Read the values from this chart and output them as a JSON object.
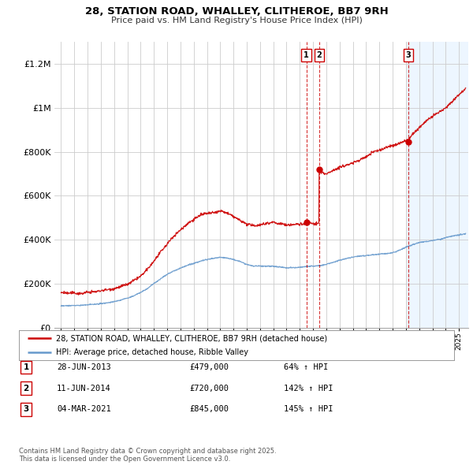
{
  "title": "28, STATION ROAD, WHALLEY, CLITHEROE, BB7 9RH",
  "subtitle": "Price paid vs. HM Land Registry's House Price Index (HPI)",
  "legend_line1": "28, STATION ROAD, WHALLEY, CLITHEROE, BB7 9RH (detached house)",
  "legend_line2": "HPI: Average price, detached house, Ribble Valley",
  "footer": "Contains HM Land Registry data © Crown copyright and database right 2025.\nThis data is licensed under the Open Government Licence v3.0.",
  "transactions": [
    {
      "label": "1",
      "date": "28-JUN-2013",
      "price": "£479,000",
      "hpi": "64% ↑ HPI",
      "x": 2013.49,
      "y_red": 479000
    },
    {
      "label": "2",
      "date": "11-JUN-2014",
      "price": "£720,000",
      "hpi": "142% ↑ HPI",
      "x": 2014.45,
      "y_red": 720000
    },
    {
      "label": "3",
      "date": "04-MAR-2021",
      "price": "£845,000",
      "hpi": "145% ↑ HPI",
      "x": 2021.17,
      "y_red": 845000
    }
  ],
  "red_color": "#cc0000",
  "blue_color": "#6699cc",
  "blue_fill_color": "#ddeeff",
  "grid_color": "#cccccc",
  "background_color": "#ffffff",
  "ylim": [
    0,
    1300000
  ],
  "xlim": [
    1994.5,
    2025.7
  ],
  "red_keypoints": [
    [
      1995.0,
      160000
    ],
    [
      1995.5,
      158000
    ],
    [
      1996.0,
      162000
    ],
    [
      1996.5,
      160000
    ],
    [
      1997.0,
      165000
    ],
    [
      1997.5,
      168000
    ],
    [
      1998.0,
      173000
    ],
    [
      1998.5,
      178000
    ],
    [
      1999.0,
      183000
    ],
    [
      1999.5,
      190000
    ],
    [
      2000.0,
      200000
    ],
    [
      2000.5,
      215000
    ],
    [
      2001.0,
      235000
    ],
    [
      2001.5,
      265000
    ],
    [
      2002.0,
      305000
    ],
    [
      2002.5,
      345000
    ],
    [
      2003.0,
      380000
    ],
    [
      2003.5,
      415000
    ],
    [
      2004.0,
      445000
    ],
    [
      2004.5,
      470000
    ],
    [
      2005.0,
      490000
    ],
    [
      2005.5,
      510000
    ],
    [
      2006.0,
      515000
    ],
    [
      2006.5,
      520000
    ],
    [
      2007.0,
      530000
    ],
    [
      2007.5,
      520000
    ],
    [
      2008.0,
      505000
    ],
    [
      2008.5,
      490000
    ],
    [
      2009.0,
      475000
    ],
    [
      2009.5,
      468000
    ],
    [
      2010.0,
      472000
    ],
    [
      2010.5,
      478000
    ],
    [
      2011.0,
      480000
    ],
    [
      2011.5,
      475000
    ],
    [
      2012.0,
      470000
    ],
    [
      2012.5,
      472000
    ],
    [
      2013.0,
      474000
    ],
    [
      2013.49,
      479000
    ],
    [
      2013.51,
      479000
    ],
    [
      2013.6,
      482000
    ],
    [
      2013.8,
      480000
    ],
    [
      2014.0,
      478000
    ],
    [
      2014.44,
      479000
    ],
    [
      2014.45,
      720000
    ],
    [
      2014.5,
      718000
    ],
    [
      2014.7,
      710000
    ],
    [
      2015.0,
      700000
    ],
    [
      2015.5,
      720000
    ],
    [
      2016.0,
      730000
    ],
    [
      2016.5,
      740000
    ],
    [
      2017.0,
      750000
    ],
    [
      2017.5,
      760000
    ],
    [
      2018.0,
      770000
    ],
    [
      2018.5,
      790000
    ],
    [
      2019.0,
      800000
    ],
    [
      2019.5,
      810000
    ],
    [
      2020.0,
      820000
    ],
    [
      2020.5,
      830000
    ],
    [
      2021.0,
      840000
    ],
    [
      2021.17,
      845000
    ],
    [
      2021.5,
      870000
    ],
    [
      2022.0,
      900000
    ],
    [
      2022.5,
      930000
    ],
    [
      2023.0,
      950000
    ],
    [
      2023.5,
      970000
    ],
    [
      2024.0,
      990000
    ],
    [
      2024.5,
      1020000
    ],
    [
      2025.0,
      1050000
    ],
    [
      2025.5,
      1080000
    ]
  ],
  "blue_keypoints": [
    [
      1995.0,
      100000
    ],
    [
      1995.5,
      100000
    ],
    [
      1996.0,
      101000
    ],
    [
      1996.5,
      101500
    ],
    [
      1997.0,
      103000
    ],
    [
      1997.5,
      105000
    ],
    [
      1998.0,
      108000
    ],
    [
      1998.5,
      112000
    ],
    [
      1999.0,
      117000
    ],
    [
      1999.5,
      125000
    ],
    [
      2000.0,
      133000
    ],
    [
      2000.5,
      145000
    ],
    [
      2001.0,
      158000
    ],
    [
      2001.5,
      175000
    ],
    [
      2002.0,
      200000
    ],
    [
      2002.5,
      220000
    ],
    [
      2003.0,
      240000
    ],
    [
      2003.5,
      255000
    ],
    [
      2004.0,
      268000
    ],
    [
      2004.5,
      280000
    ],
    [
      2005.0,
      290000
    ],
    [
      2005.5,
      300000
    ],
    [
      2006.0,
      308000
    ],
    [
      2006.5,
      312000
    ],
    [
      2007.0,
      318000
    ],
    [
      2007.5,
      315000
    ],
    [
      2008.0,
      308000
    ],
    [
      2008.5,
      298000
    ],
    [
      2009.0,
      285000
    ],
    [
      2009.5,
      278000
    ],
    [
      2010.0,
      278000
    ],
    [
      2010.5,
      278000
    ],
    [
      2011.0,
      278000
    ],
    [
      2011.5,
      275000
    ],
    [
      2012.0,
      272000
    ],
    [
      2012.5,
      272000
    ],
    [
      2013.0,
      274000
    ],
    [
      2013.5,
      277000
    ],
    [
      2014.0,
      280000
    ],
    [
      2014.5,
      283000
    ],
    [
      2015.0,
      290000
    ],
    [
      2015.5,
      298000
    ],
    [
      2016.0,
      308000
    ],
    [
      2016.5,
      315000
    ],
    [
      2017.0,
      320000
    ],
    [
      2017.5,
      325000
    ],
    [
      2018.0,
      328000
    ],
    [
      2018.5,
      330000
    ],
    [
      2019.0,
      333000
    ],
    [
      2019.5,
      336000
    ],
    [
      2020.0,
      340000
    ],
    [
      2020.5,
      350000
    ],
    [
      2021.0,
      365000
    ],
    [
      2021.5,
      375000
    ],
    [
      2022.0,
      385000
    ],
    [
      2022.5,
      390000
    ],
    [
      2023.0,
      395000
    ],
    [
      2023.5,
      400000
    ],
    [
      2024.0,
      408000
    ],
    [
      2024.5,
      415000
    ],
    [
      2025.0,
      420000
    ],
    [
      2025.5,
      425000
    ]
  ],
  "shade_start": 2021.0,
  "yticks": [
    0,
    200000,
    400000,
    600000,
    800000,
    1000000,
    1200000
  ],
  "ytick_labels": [
    "£0",
    "£200K",
    "£400K",
    "£600K",
    "£800K",
    "£1M",
    "£1.2M"
  ]
}
